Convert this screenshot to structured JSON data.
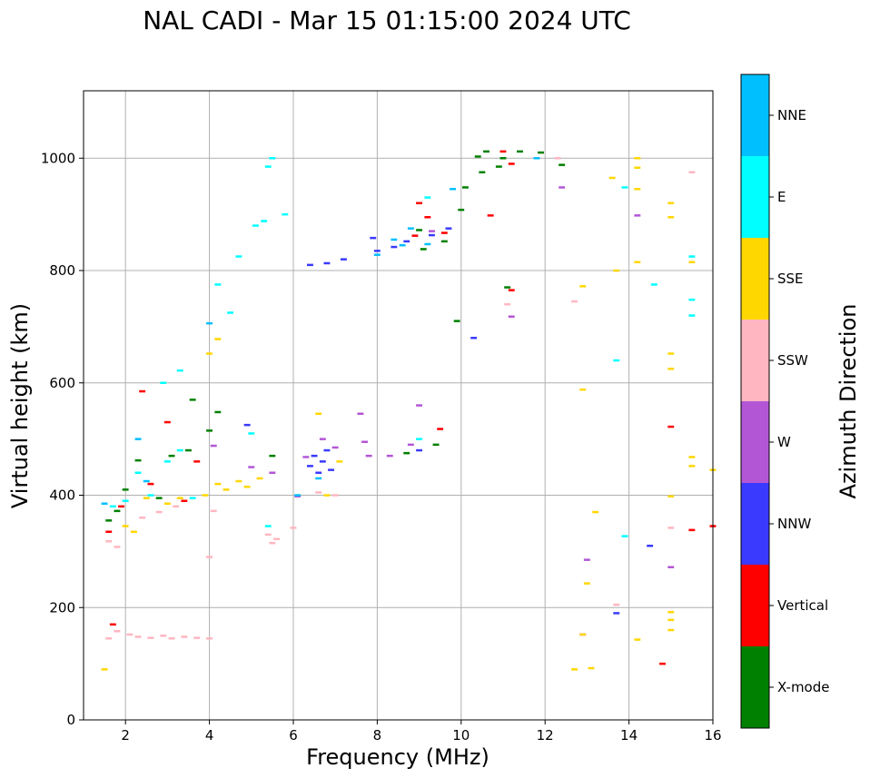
{
  "chart_data": {
    "type": "scatter",
    "title": "NAL CADI - Mar 15 01:15:00 2024 UTC",
    "xlabel": "Frequency (MHz)",
    "ylabel": "Virtual height (km)",
    "xlim": [
      1,
      16
    ],
    "ylim": [
      0,
      1120
    ],
    "xticks": [
      "2",
      "4",
      "6",
      "8",
      "10",
      "12",
      "14",
      "16"
    ],
    "yticks": [
      "0",
      "200",
      "400",
      "600",
      "800",
      "1000"
    ],
    "grid": true,
    "colorbar": {
      "label": "Azimuth Direction",
      "categories": [
        {
          "name": "X-mode",
          "color": "#008000"
        },
        {
          "name": "Vertical",
          "color": "#ff0000"
        },
        {
          "name": "NNW",
          "color": "#3a3aff"
        },
        {
          "name": "W",
          "color": "#b356d6"
        },
        {
          "name": "SSW",
          "color": "#ffb6c1"
        },
        {
          "name": "SSE",
          "color": "#ffd700"
        },
        {
          "name": "E",
          "color": "#00ffff"
        },
        {
          "name": "NNE",
          "color": "#00bfff"
        }
      ]
    },
    "marker": {
      "width_mhz": 0.15,
      "height_km": 4
    },
    "series": [
      {
        "name": "X-mode",
        "points": [
          [
            1.6,
            355
          ],
          [
            1.8,
            372
          ],
          [
            2.0,
            410
          ],
          [
            2.3,
            462
          ],
          [
            2.8,
            395
          ],
          [
            3.1,
            470
          ],
          [
            3.5,
            480
          ],
          [
            3.6,
            570
          ],
          [
            4.0,
            515
          ],
          [
            4.2,
            548
          ],
          [
            5.5,
            470
          ],
          [
            8.7,
            475
          ],
          [
            9.0,
            872
          ],
          [
            9.1,
            838
          ],
          [
            9.4,
            490
          ],
          [
            9.6,
            852
          ],
          [
            9.9,
            710
          ],
          [
            10.0,
            908
          ],
          [
            10.1,
            948
          ],
          [
            10.4,
            1003
          ],
          [
            10.5,
            975
          ],
          [
            10.6,
            1012
          ],
          [
            10.9,
            985
          ],
          [
            11.0,
            1000
          ],
          [
            11.1,
            770
          ],
          [
            11.4,
            1012
          ],
          [
            11.9,
            1010
          ],
          [
            12.4,
            988
          ]
        ]
      },
      {
        "name": "Vertical",
        "points": [
          [
            1.6,
            335
          ],
          [
            1.7,
            170
          ],
          [
            1.9,
            380
          ],
          [
            2.4,
            585
          ],
          [
            2.6,
            420
          ],
          [
            3.0,
            530
          ],
          [
            3.4,
            390
          ],
          [
            3.7,
            460
          ],
          [
            8.9,
            862
          ],
          [
            9.0,
            920
          ],
          [
            9.2,
            895
          ],
          [
            9.5,
            518
          ],
          [
            9.6,
            867
          ],
          [
            10.7,
            898
          ],
          [
            11.0,
            1012
          ],
          [
            11.2,
            990
          ],
          [
            11.2,
            765
          ],
          [
            15.0,
            522
          ],
          [
            15.5,
            338
          ],
          [
            16.0,
            345
          ],
          [
            14.8,
            100
          ]
        ]
      },
      {
        "name": "NNW",
        "points": [
          [
            6.4,
            452
          ],
          [
            6.5,
            470
          ],
          [
            6.6,
            440
          ],
          [
            6.7,
            460
          ],
          [
            6.8,
            480
          ],
          [
            6.9,
            445
          ],
          [
            6.4,
            810
          ],
          [
            6.8,
            813
          ],
          [
            7.2,
            820
          ],
          [
            7.9,
            858
          ],
          [
            8.0,
            835
          ],
          [
            8.4,
            842
          ],
          [
            8.7,
            852
          ],
          [
            9.0,
            480
          ],
          [
            9.3,
            863
          ],
          [
            9.7,
            875
          ],
          [
            10.3,
            680
          ],
          [
            4.9,
            525
          ],
          [
            14.5,
            310
          ],
          [
            13.7,
            190
          ]
        ]
      },
      {
        "name": "W",
        "points": [
          [
            4.1,
            488
          ],
          [
            5.0,
            450
          ],
          [
            5.5,
            440
          ],
          [
            6.1,
            398
          ],
          [
            6.3,
            468
          ],
          [
            6.7,
            500
          ],
          [
            7.0,
            485
          ],
          [
            7.6,
            545
          ],
          [
            7.7,
            495
          ],
          [
            7.8,
            470
          ],
          [
            8.3,
            470
          ],
          [
            8.8,
            490
          ],
          [
            9.0,
            560
          ],
          [
            9.3,
            870
          ],
          [
            11.2,
            718
          ],
          [
            12.4,
            948
          ],
          [
            13.0,
            285
          ],
          [
            14.2,
            898
          ],
          [
            15.0,
            272
          ],
          [
            12.9,
            152
          ]
        ]
      },
      {
        "name": "SSW",
        "points": [
          [
            1.6,
            145
          ],
          [
            1.8,
            158
          ],
          [
            2.1,
            152
          ],
          [
            2.3,
            148
          ],
          [
            2.6,
            146
          ],
          [
            2.9,
            150
          ],
          [
            3.1,
            145
          ],
          [
            3.4,
            148
          ],
          [
            3.7,
            146
          ],
          [
            4.0,
            145
          ],
          [
            1.6,
            318
          ],
          [
            1.8,
            308
          ],
          [
            2.4,
            360
          ],
          [
            2.8,
            370
          ],
          [
            3.2,
            380
          ],
          [
            4.1,
            372
          ],
          [
            5.4,
            330
          ],
          [
            5.5,
            315
          ],
          [
            5.6,
            322
          ],
          [
            6.0,
            342
          ],
          [
            6.6,
            405
          ],
          [
            7.0,
            400
          ],
          [
            11.1,
            740
          ],
          [
            12.3,
            1000
          ],
          [
            12.7,
            745
          ],
          [
            13.7,
            205
          ],
          [
            15.0,
            342
          ],
          [
            15.5,
            975
          ],
          [
            4.0,
            290
          ]
        ]
      },
      {
        "name": "SSE",
        "points": [
          [
            1.5,
            90
          ],
          [
            2.0,
            345
          ],
          [
            2.2,
            335
          ],
          [
            2.5,
            395
          ],
          [
            3.0,
            385
          ],
          [
            3.3,
            395
          ],
          [
            3.9,
            400
          ],
          [
            4.2,
            420
          ],
          [
            4.4,
            410
          ],
          [
            4.7,
            425
          ],
          [
            4.9,
            415
          ],
          [
            5.2,
            430
          ],
          [
            6.6,
            545
          ],
          [
            6.8,
            400
          ],
          [
            7.1,
            460
          ],
          [
            4.0,
            652
          ],
          [
            4.2,
            678
          ],
          [
            12.7,
            90
          ],
          [
            12.9,
            152
          ],
          [
            13.0,
            243
          ],
          [
            13.1,
            92
          ],
          [
            13.2,
            370
          ],
          [
            12.9,
            588
          ],
          [
            12.9,
            772
          ],
          [
            13.6,
            965
          ],
          [
            13.7,
            800
          ],
          [
            14.2,
            143
          ],
          [
            14.2,
            815
          ],
          [
            14.2,
            945
          ],
          [
            14.2,
            983
          ],
          [
            14.2,
            1000
          ],
          [
            15.0,
            160
          ],
          [
            15.0,
            178
          ],
          [
            15.0,
            192
          ],
          [
            15.0,
            398
          ],
          [
            15.0,
            625
          ],
          [
            15.0,
            652
          ],
          [
            15.0,
            895
          ],
          [
            15.0,
            920
          ],
          [
            15.5,
            452
          ],
          [
            15.5,
            468
          ],
          [
            15.5,
            815
          ],
          [
            16.0,
            445
          ]
        ]
      },
      {
        "name": "E",
        "points": [
          [
            1.7,
            380
          ],
          [
            2.0,
            390
          ],
          [
            2.3,
            440
          ],
          [
            2.6,
            400
          ],
          [
            3.0,
            460
          ],
          [
            3.3,
            480
          ],
          [
            3.6,
            395
          ],
          [
            2.9,
            600
          ],
          [
            3.3,
            622
          ],
          [
            4.2,
            775
          ],
          [
            4.7,
            825
          ],
          [
            5.0,
            510
          ],
          [
            5.1,
            880
          ],
          [
            5.4,
            985
          ],
          [
            5.5,
            1000
          ],
          [
            5.3,
            888
          ],
          [
            5.4,
            345
          ],
          [
            5.8,
            900
          ],
          [
            4.5,
            725
          ],
          [
            9.0,
            500
          ],
          [
            9.2,
            930
          ],
          [
            13.7,
            640
          ],
          [
            13.9,
            327
          ],
          [
            14.6,
            775
          ],
          [
            15.5,
            720
          ],
          [
            15.5,
            748
          ],
          [
            15.5,
            825
          ],
          [
            13.9,
            948
          ]
        ]
      },
      {
        "name": "NNE",
        "points": [
          [
            1.5,
            385
          ],
          [
            2.3,
            500
          ],
          [
            2.5,
            425
          ],
          [
            4.0,
            706
          ],
          [
            6.1,
            400
          ],
          [
            6.6,
            430
          ],
          [
            8.0,
            828
          ],
          [
            8.4,
            855
          ],
          [
            8.6,
            845
          ],
          [
            8.8,
            875
          ],
          [
            9.2,
            847
          ],
          [
            9.8,
            945
          ],
          [
            11.8,
            1000
          ]
        ]
      }
    ]
  }
}
